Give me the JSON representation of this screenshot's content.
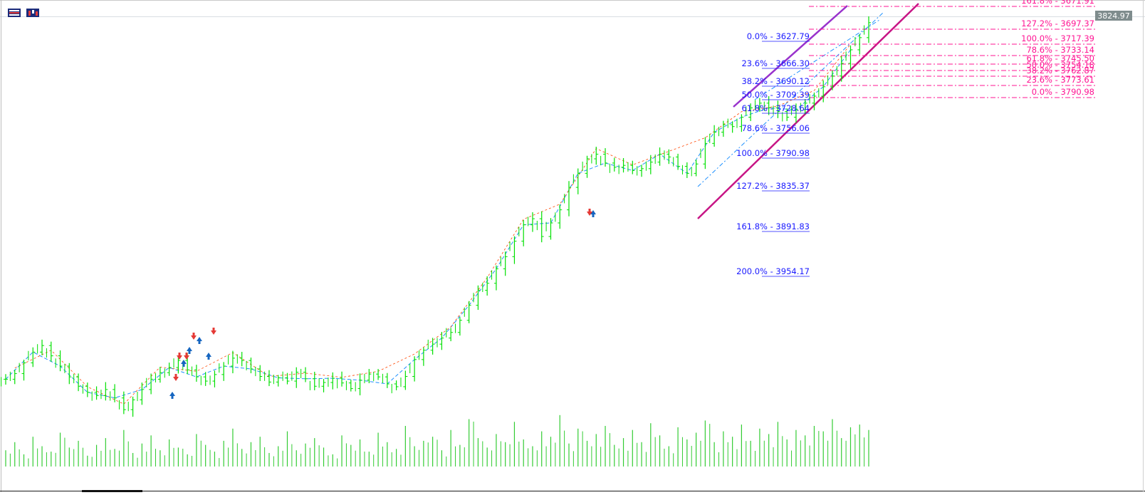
{
  "toolbar": {
    "icons": [
      "list-icon",
      "chart-type-icon"
    ]
  },
  "current_price": "3824.97",
  "colors": {
    "candle": "#00e000",
    "volume": "#33cc33",
    "fib_left": "#1a1aff",
    "fib_right": "#ff1493",
    "channel_upper": "#9932cc",
    "channel_lower": "#c71585",
    "zigzag": "#1e90ff",
    "zigzag_alt": "#ff4500",
    "price_tag_bg": "#7f8c8d"
  },
  "fibonacci_left": [
    {
      "label": "0.0% - 3627.79",
      "price": 3627.79
    },
    {
      "label": "23.6% - 3666.30",
      "price": 3666.3
    },
    {
      "label": "38.2% - 3690.12",
      "price": 3690.12
    },
    {
      "label": "50.0% - 3709.39",
      "price": 3709.39
    },
    {
      "label": "61.8% - 3728.64",
      "price": 3728.64
    },
    {
      "label": "78.6% - 3756.06",
      "price": 3756.06
    },
    {
      "label": "100.0% - 3790.98",
      "price": 3790.98
    },
    {
      "label": "127.2% - 3835.37",
      "price": 3835.37
    },
    {
      "label": "161.8% - 3891.83",
      "price": 3891.83
    },
    {
      "label": "200.0% - 3954.17",
      "price": 3954.17
    }
  ],
  "fibonacci_right": [
    {
      "label": "161.8% - 3671.91"
    },
    {
      "label": "127.2% - 3697.37"
    },
    {
      "label": "100.0% - 3717.39"
    },
    {
      "label": "78.6% - 3733.14"
    },
    {
      "label": "61.8% - 3745.50"
    },
    {
      "label": "50.0% - 3754.18"
    },
    {
      "label": "38.2% - 3762.87"
    },
    {
      "label": "23.6% - 3773.61"
    },
    {
      "label": "0.0% - 3790.98"
    }
  ],
  "chart_data": {
    "type": "line",
    "title": "",
    "xlabel": "",
    "ylabel": "",
    "current_price": 3824.97,
    "grid": false,
    "series": [
      {
        "values": [
          3600,
          3612,
          3635,
          3658,
          3672,
          3650,
          3628,
          3605,
          3585,
          3572,
          3565,
          3578,
          3560,
          3535,
          3556,
          3578,
          3600,
          3614,
          3625,
          3640,
          3620,
          3605,
          3596,
          3610,
          3628,
          3645,
          3640,
          3622,
          3606,
          3594,
          3603,
          3596,
          3615,
          3601,
          3585,
          3593,
          3602,
          3592,
          3580,
          3598,
          3611,
          3605,
          3590,
          3584,
          3606,
          3642,
          3662,
          3675,
          3688,
          3700,
          3726,
          3758,
          3790,
          3805,
          3836,
          3862,
          3895,
          3930,
          3943,
          3905,
          3934,
          3962,
          4010,
          4040,
          4071,
          4081,
          4062,
          4053,
          4057,
          4046,
          4050,
          4064,
          4081,
          4075,
          4055,
          4040,
          4060,
          4104,
          4128,
          4144,
          4140,
          4160,
          4180,
          4190,
          4180,
          4172,
          4160,
          4176,
          4190,
          4205,
          4225,
          4248,
          4275,
          4304,
          4330,
          4362
        ]
      }
    ],
    "volume": [
      12,
      18,
      9,
      22,
      15,
      11,
      25,
      14,
      19,
      8,
      16,
      21,
      13,
      27,
      10,
      17,
      23,
      12,
      20,
      14,
      9,
      24,
      16,
      11,
      19,
      28,
      13,
      18,
      22,
      10,
      15,
      26,
      12,
      17,
      21,
      14,
      9,
      23,
      16,
      20,
      11,
      25,
      18,
      13,
      30,
      15,
      19,
      22,
      12,
      27,
      16,
      35,
      21,
      14,
      24,
      18,
      33,
      20,
      15,
      26,
      22,
      38,
      17,
      28,
      19,
      24,
      30,
      16,
      21,
      27,
      18,
      32,
      23,
      15,
      29,
      20,
      25,
      34,
      18,
      26,
      22,
      31,
      19,
      28,
      24,
      33,
      20,
      27,
      23,
      30,
      26,
      35,
      21,
      29,
      31,
      27
    ]
  }
}
